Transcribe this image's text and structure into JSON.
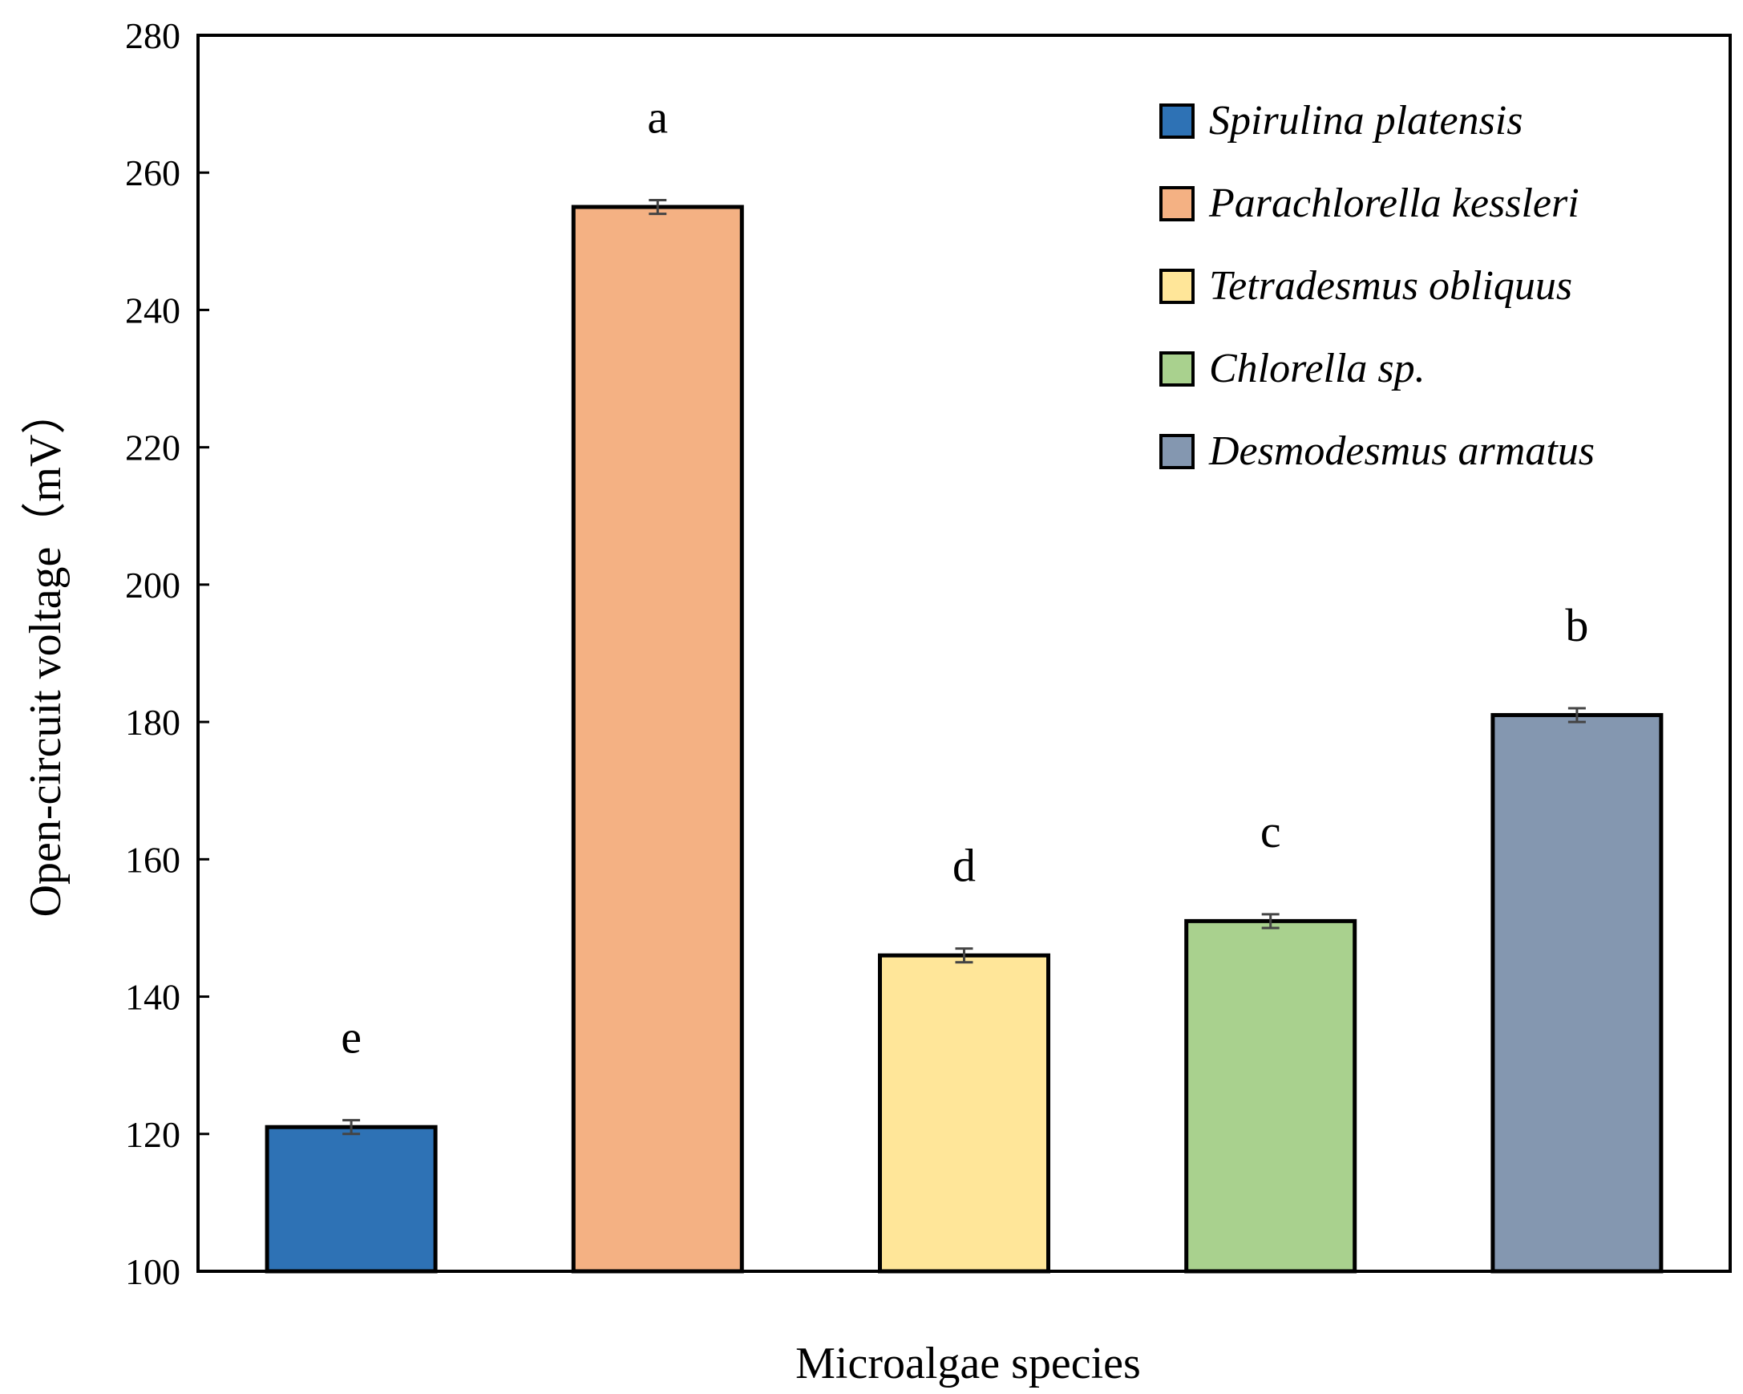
{
  "chart_data": {
    "type": "bar",
    "xlabel": "Microalgae species",
    "ylabel": "Open-circuit voltage（mV）",
    "ylim": [
      100,
      280
    ],
    "yticks": [
      100,
      120,
      140,
      160,
      180,
      200,
      220,
      240,
      260,
      280
    ],
    "grid": false,
    "legend_position": "top-right",
    "categories": [
      "Spirulina platensis",
      "Parachlorella kessleri",
      "Tetradesmus obliquus",
      "Chlorella sp.",
      "Desmodesmus armatus"
    ],
    "values": [
      121,
      255,
      146,
      151,
      181
    ],
    "errors": [
      1,
      1,
      1,
      1,
      1
    ],
    "significance": [
      "e",
      "a",
      "d",
      "c",
      "b"
    ],
    "colors": [
      "#2e72b5",
      "#f4b183",
      "#ffe699",
      "#a9d18e",
      "#8497b0"
    ]
  }
}
